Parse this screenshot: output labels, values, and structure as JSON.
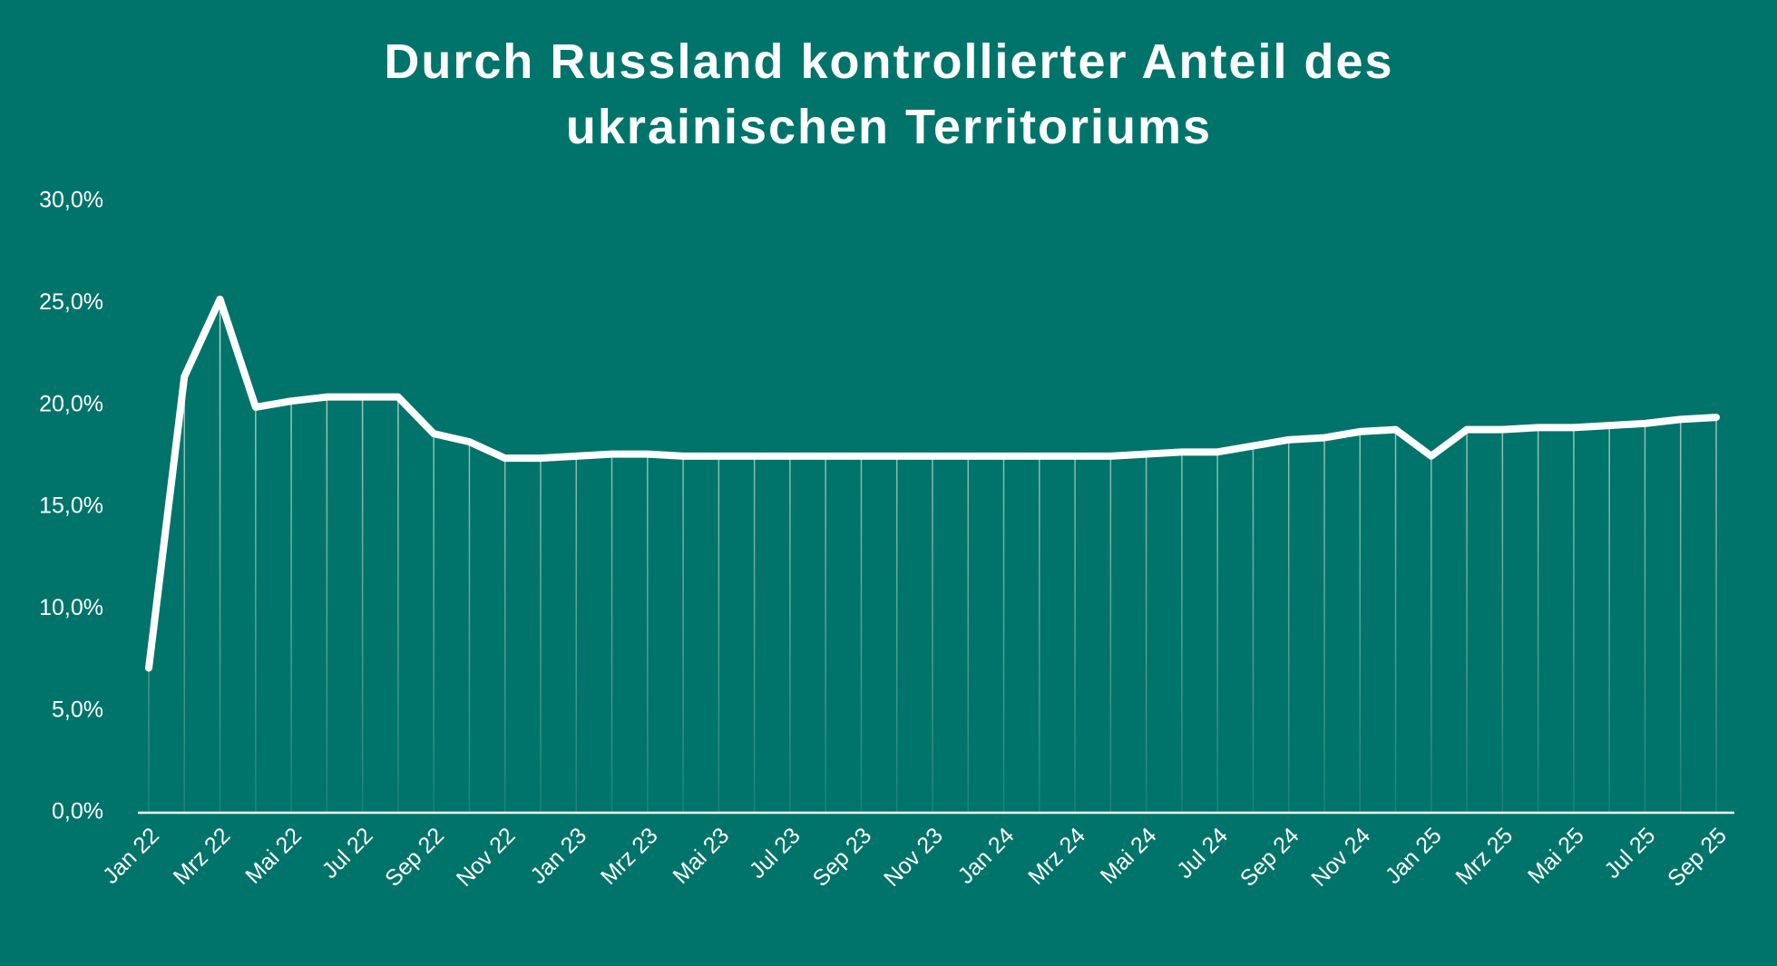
{
  "chart_data": {
    "type": "line",
    "title": "Durch Russland kontrollierter Anteil des ukrainischen Territoriums",
    "categories": [
      "Jan 22",
      null,
      "Mrz 22",
      null,
      "Mai 22",
      null,
      "Jul 22",
      null,
      "Sep 22",
      null,
      "Nov 22",
      null,
      "Jan 23",
      null,
      "Mrz 23",
      null,
      "Mai 23",
      null,
      "Jul 23",
      null,
      "Sep 23",
      null,
      "Nov 23",
      null,
      "Jan 24",
      null,
      "Mrz 24",
      null,
      "Mai 24",
      null,
      "Jul 24",
      null,
      "Sep 24",
      null,
      "Nov 24",
      null,
      "Jan 25",
      null,
      "Mrz 25",
      null,
      "Mai 25",
      null,
      "Jul 25",
      null,
      "Sep 25"
    ],
    "values": [
      7.1,
      21.4,
      25.2,
      19.9,
      20.2,
      20.4,
      20.4,
      20.4,
      18.6,
      18.2,
      17.4,
      17.4,
      17.5,
      17.6,
      17.6,
      17.5,
      17.5,
      17.5,
      17.5,
      17.5,
      17.5,
      17.5,
      17.5,
      17.5,
      17.5,
      17.5,
      17.5,
      17.5,
      17.6,
      17.7,
      17.7,
      18.0,
      18.3,
      18.4,
      18.7,
      18.8,
      17.5,
      18.8,
      18.8,
      18.9,
      18.9,
      19.0,
      19.1,
      19.3,
      19.4
    ],
    "color": "#ffffff",
    "ylim": [
      0,
      30
    ],
    "yticks": [
      {
        "value": 0,
        "label": "0,0%"
      },
      {
        "value": 5,
        "label": "5,0%"
      },
      {
        "value": 10,
        "label": "10,0%"
      },
      {
        "value": 15,
        "label": "15,0%"
      },
      {
        "value": 20,
        "label": "20,0%"
      },
      {
        "value": 25,
        "label": "25,0%"
      },
      {
        "value": 30,
        "label": "30,0%"
      }
    ],
    "drop_lines": true
  }
}
